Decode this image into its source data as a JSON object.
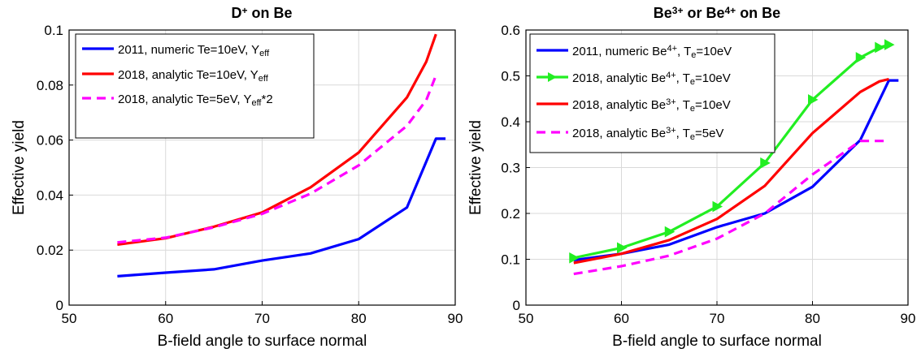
{
  "chart_data": [
    {
      "type": "line",
      "title": "D⁺ on Be",
      "title_parts": [
        "D",
        "+",
        " on Be"
      ],
      "xlabel": "B-field angle to surface normal",
      "ylabel": "Effective yield",
      "xlim": [
        50,
        90
      ],
      "ylim": [
        0,
        0.1
      ],
      "xticks": [
        "50",
        "60",
        "70",
        "80",
        "90"
      ],
      "yticks": [
        "0",
        "0.02",
        "0.04",
        "0.06",
        "0.08",
        "0.1"
      ],
      "grid": true,
      "legend_position": "top-left",
      "series": [
        {
          "name": "2011, numeric Te=10eV, Yeff",
          "legend_parts": [
            "2011, numeric Te=10eV, Y",
            "eff",
            ""
          ],
          "color": "#0000ff",
          "style": "solid",
          "marker": "none",
          "x": [
            55,
            60,
            65,
            70,
            75,
            80,
            85,
            88,
            89
          ],
          "y": [
            0.0105,
            0.0118,
            0.013,
            0.0162,
            0.0188,
            0.024,
            0.0355,
            0.0605,
            0.0605
          ]
        },
        {
          "name": "2018, analytic Te=10eV, Yeff",
          "legend_parts": [
            "2018, analytic Te=10eV, Y",
            "eff",
            ""
          ],
          "color": "#ff0000",
          "style": "solid",
          "marker": "none",
          "x": [
            55,
            60,
            65,
            70,
            75,
            80,
            85,
            87,
            88
          ],
          "y": [
            0.022,
            0.0243,
            0.0285,
            0.0337,
            0.0428,
            0.0555,
            0.0755,
            0.0885,
            0.0985
          ]
        },
        {
          "name": "2018, analytic Te=5eV, Yeff*2",
          "legend_parts": [
            "2018, analytic Te=5eV, Y",
            "eff",
            "*2"
          ],
          "color": "#ff00ff",
          "style": "dashed",
          "marker": "none",
          "x": [
            55,
            60,
            65,
            70,
            75,
            80,
            85,
            87,
            88
          ],
          "y": [
            0.0228,
            0.0245,
            0.0283,
            0.0332,
            0.0405,
            0.0508,
            0.0652,
            0.0745,
            0.0835
          ]
        }
      ]
    },
    {
      "type": "line",
      "title": "Be³⁺ or Be⁴⁺ on Be",
      "title_parts": [
        "Be",
        "3+",
        " or Be",
        "4+",
        " on Be"
      ],
      "xlabel": "B-field angle to surface normal",
      "ylabel": "Effective yield",
      "xlim": [
        50,
        90
      ],
      "ylim": [
        0,
        0.6
      ],
      "xticks": [
        "50",
        "60",
        "70",
        "80",
        "90"
      ],
      "yticks": [
        "0",
        "0.1",
        "0.2",
        "0.3",
        "0.4",
        "0.5",
        "0.6"
      ],
      "grid": true,
      "legend_position": "top-left",
      "series": [
        {
          "name": "2011, numeric Be4+, Te=10eV",
          "legend_parts": [
            "2011, numeric Be",
            "4+",
            ", T",
            "e",
            "=10eV"
          ],
          "color": "#0000ff",
          "style": "solid",
          "marker": "none",
          "x": [
            55,
            60,
            65,
            70,
            75,
            80,
            85,
            88,
            89
          ],
          "y": [
            0.098,
            0.112,
            0.132,
            0.17,
            0.2,
            0.258,
            0.36,
            0.49,
            0.49
          ]
        },
        {
          "name": "2018, analytic Be4+, Te=10eV",
          "legend_parts": [
            "2018, analytic Be",
            "4+",
            ", T",
            "e",
            "=10eV"
          ],
          "color": "#22ee22",
          "style": "solid",
          "marker": "triangle-right",
          "x": [
            55,
            60,
            65,
            70,
            75,
            80,
            85,
            87,
            88
          ],
          "y": [
            0.103,
            0.125,
            0.16,
            0.215,
            0.31,
            0.448,
            0.54,
            0.562,
            0.568
          ]
        },
        {
          "name": "2018, analytic Be3+, Te=10eV",
          "legend_parts": [
            "2018, analytic Be",
            "3+",
            ", T",
            "e",
            "=10eV"
          ],
          "color": "#ff0000",
          "style": "solid",
          "marker": "none",
          "x": [
            55,
            60,
            65,
            70,
            75,
            80,
            85,
            87,
            88
          ],
          "y": [
            0.092,
            0.112,
            0.142,
            0.188,
            0.26,
            0.375,
            0.465,
            0.488,
            0.493
          ]
        },
        {
          "name": "2018, analytic Be3+, Te=5eV",
          "legend_parts": [
            "2018, analytic Be",
            "3+",
            ", T",
            "e",
            "=5eV"
          ],
          "color": "#ff00ff",
          "style": "dashed",
          "marker": "none",
          "x": [
            55,
            60,
            65,
            70,
            75,
            80,
            85,
            87,
            88
          ],
          "y": [
            0.068,
            0.085,
            0.108,
            0.145,
            0.2,
            0.285,
            0.358,
            0.358,
            0.358
          ]
        }
      ]
    }
  ]
}
